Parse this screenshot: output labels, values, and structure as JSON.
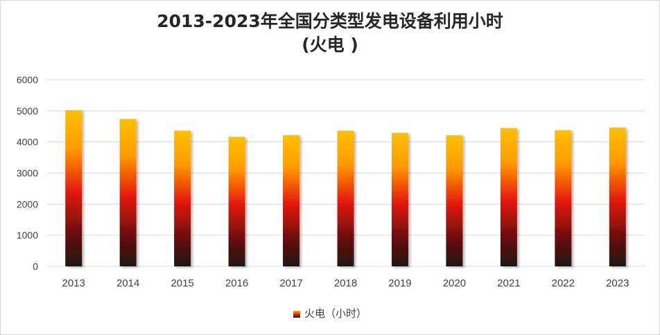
{
  "chart_data": {
    "type": "bar",
    "title": "2013-2023年全国分类型发电设备利用小时",
    "subtitle": "(火电 )",
    "categories": [
      "2013",
      "2014",
      "2015",
      "2016",
      "2017",
      "2018",
      "2019",
      "2020",
      "2021",
      "2022",
      "2023"
    ],
    "series": [
      {
        "name": "火电（小时）",
        "values": [
          5021,
          4739,
          4364,
          4165,
          4219,
          4361,
          4293,
          4216,
          4448,
          4379,
          4466
        ]
      }
    ],
    "ylim": [
      0,
      6000
    ],
    "yticks": [
      "0",
      "1000",
      "2000",
      "3000",
      "4000",
      "5000",
      "6000"
    ],
    "grid": true,
    "legend_position": "bottom",
    "colors": {
      "bar_top": "#ffc000",
      "bar_mid": "#e41a0b",
      "bar_bottom": "#1a1a1a",
      "grid": "#d9d9d9"
    }
  }
}
